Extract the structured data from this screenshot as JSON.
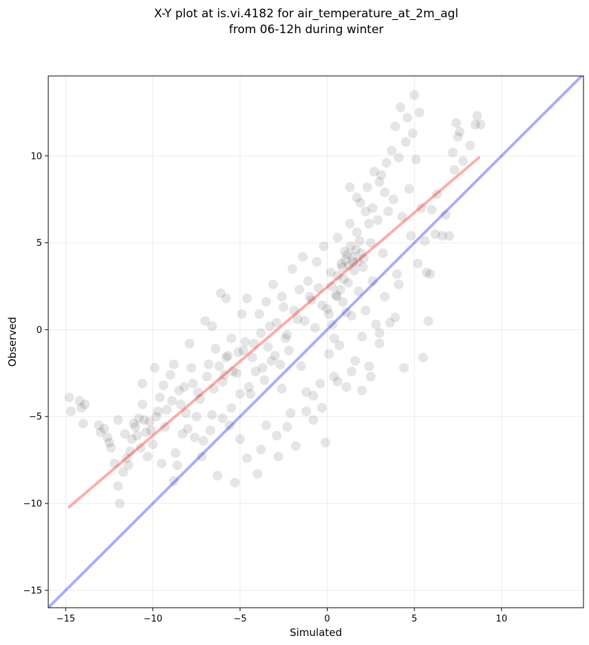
{
  "chart_data": {
    "type": "scatter",
    "title_lines": [
      "X-Y plot at is.vi.4182 for air_temperature_at_2m_agl",
      "from 06-12h during winter"
    ],
    "xlabel": "Simulated",
    "ylabel": "Observed",
    "xlim": [
      -16,
      14.7
    ],
    "ylim": [
      -16,
      14.6
    ],
    "xticks": [
      -15,
      -10,
      -5,
      0,
      5,
      10
    ],
    "yticks": [
      -15,
      -10,
      -5,
      0,
      5,
      10
    ],
    "xtick_labels": [
      "−15",
      "−10",
      "−5",
      "0",
      "5",
      "10"
    ],
    "ytick_labels": [
      "−15",
      "−10",
      "−5",
      "0",
      "5",
      "10"
    ],
    "grid": true,
    "point_color": "#000000",
    "point_alpha": 0.1,
    "reference_line": {
      "color": "#0000ff",
      "alpha": 0.33,
      "x": [
        -16,
        14.7
      ],
      "y": [
        -16,
        14.7
      ]
    },
    "fit_line": {
      "color": "#ff0000",
      "alpha": 0.33,
      "x": [
        -14.8,
        8.7
      ],
      "y": [
        -10.2,
        9.9
      ]
    },
    "points": [
      [
        -14.8,
        -3.9
      ],
      [
        -14.7,
        -4.7
      ],
      [
        -14.2,
        -4.1
      ],
      [
        -14.1,
        -4.5
      ],
      [
        -13.9,
        -4.3
      ],
      [
        -14.0,
        -5.4
      ],
      [
        -13.1,
        -5.5
      ],
      [
        -12.8,
        -5.7
      ],
      [
        -12.6,
        -6.2
      ],
      [
        -12.4,
        -6.8
      ],
      [
        -12.2,
        -7.7
      ],
      [
        -12.0,
        -9.0
      ],
      [
        -11.9,
        -10.0
      ],
      [
        -11.7,
        -8.2
      ],
      [
        -11.5,
        -7.4
      ],
      [
        -11.3,
        -7.0
      ],
      [
        -11.2,
        -6.3
      ],
      [
        -11.0,
        -5.6
      ],
      [
        -10.8,
        -5.1
      ],
      [
        -10.6,
        -4.3
      ],
      [
        -10.4,
        -5.9
      ],
      [
        -10.2,
        -5.3
      ],
      [
        -10.0,
        -6.6
      ],
      [
        -9.8,
        -5.0
      ],
      [
        -9.6,
        -3.9
      ],
      [
        -9.4,
        -3.2
      ],
      [
        -9.2,
        -4.6
      ],
      [
        -9.0,
        -2.6
      ],
      [
        -8.8,
        -8.7
      ],
      [
        -8.6,
        -7.8
      ],
      [
        -8.4,
        -4.3
      ],
      [
        -8.2,
        -3.3
      ],
      [
        -8.0,
        -5.7
      ],
      [
        -7.8,
        -2.2
      ],
      [
        -7.6,
        -6.2
      ],
      [
        -7.4,
        -3.6
      ],
      [
        -7.2,
        -7.3
      ],
      [
        -7.0,
        0.5
      ],
      [
        -6.8,
        -2.0
      ],
      [
        -6.6,
        -4.9
      ],
      [
        -6.4,
        -1.1
      ],
      [
        -6.3,
        -8.4
      ],
      [
        -6.1,
        2.1
      ],
      [
        -6.0,
        -3.0
      ],
      [
        -5.8,
        -1.6
      ],
      [
        -5.6,
        -5.5
      ],
      [
        -5.5,
        -0.5
      ],
      [
        -5.3,
        -8.8
      ],
      [
        -5.2,
        -2.5
      ],
      [
        -5.0,
        -6.3
      ],
      [
        -4.8,
        -1.2
      ],
      [
        -4.6,
        1.8
      ],
      [
        -4.4,
        -3.7
      ],
      [
        -4.2,
        -0.8
      ],
      [
        -4.0,
        -8.3
      ],
      [
        -3.9,
        0.9
      ],
      [
        -3.7,
        -2.2
      ],
      [
        -3.5,
        -5.5
      ],
      [
        -3.3,
        0.2
      ],
      [
        -3.1,
        2.6
      ],
      [
        -3.0,
        -1.5
      ],
      [
        -2.8,
        -7.3
      ],
      [
        -2.6,
        -3.4
      ],
      [
        -2.5,
        1.3
      ],
      [
        -2.3,
        -0.3
      ],
      [
        -2.1,
        -4.8
      ],
      [
        -2.0,
        3.5
      ],
      [
        -1.8,
        -6.7
      ],
      [
        -1.7,
        0.6
      ],
      [
        -1.5,
        -2.1
      ],
      [
        -1.4,
        4.2
      ],
      [
        -1.2,
        -3.6
      ],
      [
        -1.0,
        1.9
      ],
      [
        -0.8,
        -5.2
      ],
      [
        -0.7,
        0.1
      ],
      [
        -0.5,
        2.4
      ],
      [
        -0.4,
        -3.1
      ],
      [
        -0.2,
        4.8
      ],
      [
        -0.1,
        -6.5
      ],
      [
        0.0,
        1.2
      ],
      [
        0.1,
        -1.4
      ],
      [
        0.2,
        3.3
      ],
      [
        0.3,
        0.3
      ],
      [
        0.4,
        -2.7
      ],
      [
        0.5,
        2.0
      ],
      [
        0.6,
        5.3
      ],
      [
        0.7,
        -0.9
      ],
      [
        0.8,
        3.8
      ],
      [
        0.9,
        1.6
      ],
      [
        1.0,
        4.5
      ],
      [
        1.1,
        -3.3
      ],
      [
        1.2,
        2.7
      ],
      [
        1.3,
        6.1
      ],
      [
        1.4,
        0.8
      ],
      [
        1.5,
        3.9
      ],
      [
        1.6,
        -1.8
      ],
      [
        1.7,
        5.6
      ],
      [
        1.8,
        2.2
      ],
      [
        1.9,
        7.3
      ],
      [
        2.0,
        -0.4
      ],
      [
        2.1,
        4.1
      ],
      [
        2.2,
        1.1
      ],
      [
        2.3,
        8.2
      ],
      [
        2.4,
        -2.1
      ],
      [
        2.5,
        5.0
      ],
      [
        2.6,
        2.8
      ],
      [
        2.7,
        9.1
      ],
      [
        2.8,
        0.3
      ],
      [
        2.9,
        6.3
      ],
      [
        3.0,
        -0.8
      ],
      [
        3.1,
        8.9
      ],
      [
        3.2,
        4.4
      ],
      [
        3.3,
        1.9
      ],
      [
        3.4,
        9.6
      ],
      [
        3.5,
        6.8
      ],
      [
        3.6,
        0.4
      ],
      [
        3.7,
        10.3
      ],
      [
        3.8,
        7.5
      ],
      [
        3.9,
        11.7
      ],
      [
        4.0,
        3.2
      ],
      [
        4.1,
        9.9
      ],
      [
        4.2,
        12.8
      ],
      [
        4.3,
        6.5
      ],
      [
        4.4,
        -2.2
      ],
      [
        4.5,
        10.8
      ],
      [
        4.6,
        12.2
      ],
      [
        4.7,
        8.1
      ],
      [
        4.8,
        5.4
      ],
      [
        4.9,
        11.3
      ],
      [
        5.0,
        13.5
      ],
      [
        5.1,
        9.8
      ],
      [
        5.2,
        3.8
      ],
      [
        5.3,
        12.5
      ],
      [
        5.4,
        7.0
      ],
      [
        5.5,
        -1.6
      ],
      [
        5.6,
        5.1
      ],
      [
        5.7,
        3.3
      ],
      [
        5.8,
        0.5
      ],
      [
        5.9,
        3.2
      ],
      [
        6.0,
        6.9
      ],
      [
        6.2,
        5.5
      ],
      [
        6.3,
        7.8
      ],
      [
        6.6,
        5.4
      ],
      [
        6.8,
        6.6
      ],
      [
        7.0,
        5.4
      ],
      [
        7.2,
        10.2
      ],
      [
        7.3,
        9.2
      ],
      [
        7.4,
        11.9
      ],
      [
        7.5,
        11.1
      ],
      [
        7.6,
        11.4
      ],
      [
        7.8,
        9.7
      ],
      [
        8.2,
        10.6
      ],
      [
        8.5,
        11.8
      ],
      [
        8.6,
        12.3
      ],
      [
        8.8,
        11.8
      ],
      [
        -12.0,
        -5.2
      ],
      [
        -11.6,
        -6.0
      ],
      [
        -11.1,
        -5.4
      ],
      [
        -10.9,
        -6.1
      ],
      [
        -10.5,
        -5.2
      ],
      [
        -10.1,
        -5.8
      ],
      [
        -9.7,
        -4.7
      ],
      [
        -9.3,
        -5.6
      ],
      [
        -8.9,
        -4.1
      ],
      [
        -8.5,
        -3.5
      ],
      [
        -8.1,
        -4.8
      ],
      [
        -7.7,
        -3.1
      ],
      [
        -7.3,
        -4.0
      ],
      [
        -6.9,
        -2.7
      ],
      [
        -6.5,
        -3.4
      ],
      [
        -6.2,
        -2.1
      ],
      [
        -5.9,
        -2.6
      ],
      [
        -5.7,
        -1.5
      ],
      [
        -5.4,
        -2.4
      ],
      [
        -5.1,
        -1.3
      ],
      [
        -4.7,
        -0.7
      ],
      [
        -4.3,
        -1.6
      ],
      [
        -3.8,
        -0.2
      ],
      [
        -3.4,
        -1.0
      ],
      [
        -2.9,
        0.4
      ],
      [
        -2.4,
        -0.5
      ],
      [
        -1.9,
        1.1
      ],
      [
        -1.3,
        0.5
      ],
      [
        -0.9,
        1.7
      ],
      [
        -0.3,
        1.4
      ],
      [
        0.25,
        2.5
      ],
      [
        0.6,
        3.1
      ],
      [
        0.85,
        3.6
      ],
      [
        1.05,
        4.0
      ],
      [
        1.15,
        4.3
      ],
      [
        1.25,
        3.7
      ],
      [
        1.35,
        4.8
      ],
      [
        1.45,
        4.2
      ],
      [
        1.55,
        3.4
      ],
      [
        1.65,
        4.6
      ],
      [
        1.75,
        3.9
      ],
      [
        1.85,
        5.1
      ],
      [
        1.95,
        4.4
      ],
      [
        2.05,
        3.6
      ],
      [
        0.95,
        2.9
      ],
      [
        0.75,
        2.3
      ],
      [
        0.55,
        1.9
      ],
      [
        1.1,
        1.0
      ],
      [
        -2.2,
        -1.2
      ],
      [
        -2.7,
        -2.0
      ],
      [
        -3.2,
        -1.8
      ],
      [
        -3.6,
        -2.9
      ],
      [
        -4.1,
        -2.4
      ],
      [
        -4.5,
        -3.3
      ],
      [
        -5.0,
        -3.7
      ],
      [
        -5.5,
        -4.5
      ],
      [
        -6.0,
        -5.1
      ],
      [
        -6.7,
        -5.8
      ],
      [
        -7.1,
        -6.4
      ],
      [
        -7.5,
        -5.0
      ],
      [
        -8.3,
        -6.0
      ],
      [
        -8.7,
        -7.1
      ],
      [
        -9.5,
        -7.7
      ],
      [
        -10.3,
        -7.3
      ],
      [
        -10.7,
        -6.8
      ],
      [
        -11.4,
        -7.8
      ],
      [
        -12.5,
        -6.5
      ],
      [
        -13.0,
        -5.9
      ],
      [
        0.1,
        0.9
      ],
      [
        0.4,
        -0.5
      ],
      [
        -0.6,
        3.9
      ],
      [
        -1.1,
        2.8
      ],
      [
        -1.6,
        2.3
      ],
      [
        -2.6,
        1.9
      ],
      [
        -3.5,
        1.6
      ],
      [
        -4.9,
        0.9
      ],
      [
        -5.8,
        1.8
      ],
      [
        -6.6,
        0.2
      ],
      [
        -7.9,
        -0.8
      ],
      [
        -8.8,
        -2.0
      ],
      [
        -9.9,
        -2.2
      ],
      [
        -10.6,
        -3.1
      ],
      [
        2.4,
        6.1
      ],
      [
        2.6,
        7.0
      ],
      [
        2.2,
        6.8
      ],
      [
        1.7,
        7.6
      ],
      [
        1.3,
        8.2
      ],
      [
        3.0,
        8.5
      ],
      [
        3.3,
        7.9
      ],
      [
        2.0,
        -3.5
      ],
      [
        1.4,
        -2.4
      ],
      [
        0.6,
        -3.0
      ],
      [
        -0.3,
        -4.5
      ],
      [
        -0.8,
        -3.8
      ],
      [
        -1.2,
        -4.7
      ],
      [
        -2.3,
        -5.6
      ],
      [
        -2.9,
        -6.1
      ],
      [
        -3.8,
        -6.9
      ],
      [
        -4.6,
        -7.4
      ],
      [
        2.5,
        -2.7
      ],
      [
        3.0,
        -0.2
      ],
      [
        3.9,
        0.7
      ],
      [
        4.1,
        2.6
      ]
    ]
  }
}
